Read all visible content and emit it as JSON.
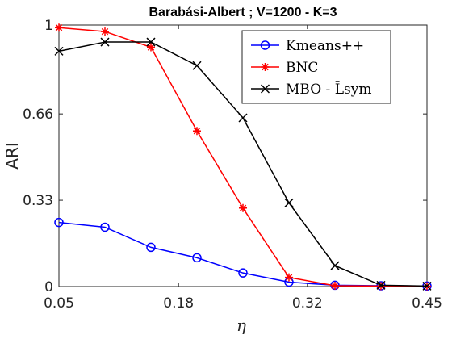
{
  "chart_data": {
    "type": "line",
    "title": "Barabási-Albert ; V=1200 - K=3",
    "xlabel": "η",
    "ylabel": "ARI",
    "x": [
      0.05,
      0.1,
      0.15,
      0.2,
      0.25,
      0.3,
      0.35,
      0.4,
      0.45
    ],
    "xlim": [
      0.05,
      0.45
    ],
    "ylim": [
      0,
      1
    ],
    "xticks": [
      "0.05",
      "0.18",
      "0.32",
      "0.45"
    ],
    "yticks": [
      "0",
      "0.33",
      "0.66",
      "1"
    ],
    "grid": false,
    "legend_position": "top-right",
    "series": [
      {
        "name": "Kmeans++",
        "color": "#0000ff",
        "marker": "circle",
        "values": [
          0.245,
          0.227,
          0.15,
          0.11,
          0.052,
          0.017,
          0.005,
          0.003,
          0.002
        ]
      },
      {
        "name": "BNC",
        "color": "#ff0000",
        "marker": "star",
        "values": [
          0.99,
          0.975,
          0.915,
          0.595,
          0.3,
          0.035,
          0.003,
          0.002,
          0.001
        ]
      },
      {
        "name": "MBO - L̄sym",
        "color": "#000000",
        "marker": "x",
        "values": [
          0.9,
          0.935,
          0.935,
          0.845,
          0.645,
          0.32,
          0.08,
          0.005,
          0.002
        ]
      }
    ]
  }
}
